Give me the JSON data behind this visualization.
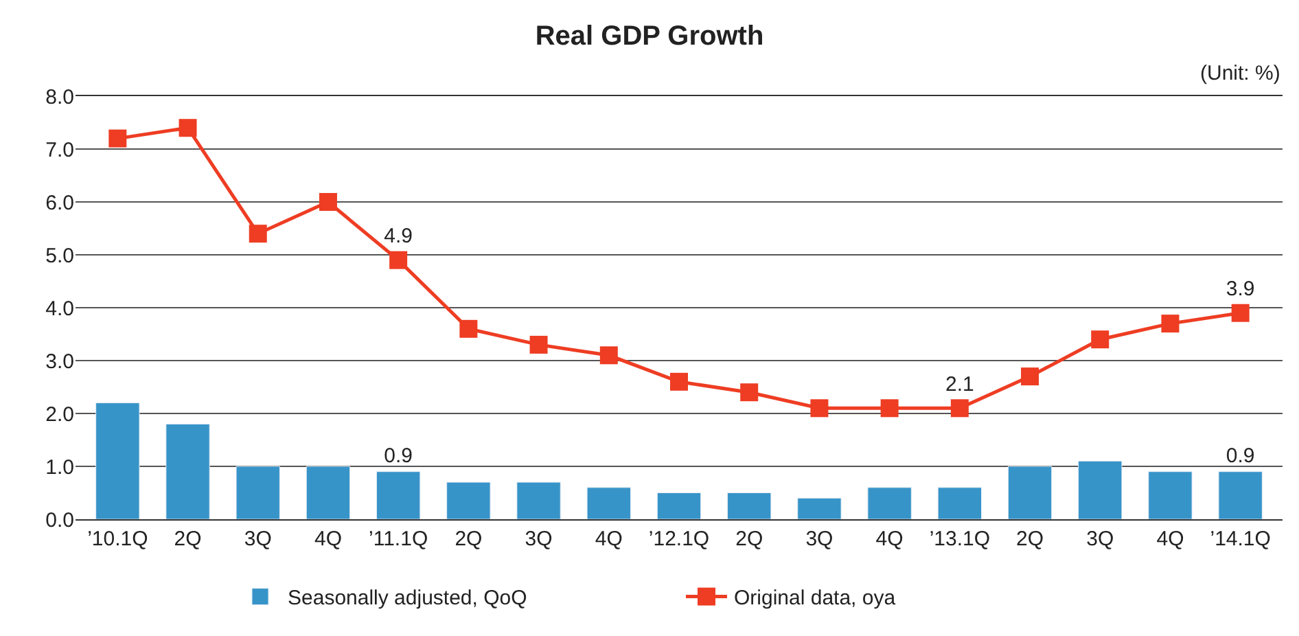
{
  "chart_data": {
    "type": "bar",
    "title": "Real GDP Growth",
    "annotations": [
      "(Unit: %)"
    ],
    "categories": [
      "’10.1Q",
      "2Q",
      "3Q",
      "4Q",
      "’11.1Q",
      "2Q",
      "3Q",
      "4Q",
      "’12.1Q",
      "2Q",
      "3Q",
      "4Q",
      "’13.1Q",
      "2Q",
      "3Q",
      "4Q",
      "’14.1Q"
    ],
    "series": [
      {
        "name": "Seasonally adjusted, QoQ",
        "color": "#3794c8",
        "values": [
          2.2,
          1.8,
          1.0,
          1.0,
          0.9,
          0.7,
          0.7,
          0.6,
          0.5,
          0.5,
          0.4,
          0.6,
          0.6,
          1.0,
          1.1,
          0.9,
          0.9
        ],
        "value_labels": [
          null,
          null,
          null,
          null,
          "0.9",
          null,
          null,
          null,
          null,
          null,
          null,
          null,
          null,
          null,
          null,
          null,
          "0.9"
        ]
      },
      {
        "name": "Original data, oya",
        "type": "line",
        "color": "#ee3d23",
        "marker": "square",
        "values": [
          7.2,
          7.4,
          5.4,
          6.0,
          4.9,
          3.6,
          3.3,
          3.1,
          2.6,
          2.4,
          2.1,
          2.1,
          2.1,
          2.7,
          3.4,
          3.7,
          3.9
        ],
        "value_labels": [
          null,
          null,
          null,
          null,
          "4.9",
          null,
          null,
          null,
          null,
          null,
          null,
          null,
          "2.1",
          null,
          null,
          null,
          "3.9"
        ]
      }
    ],
    "ylim": [
      0,
      8
    ],
    "yticks": [
      {
        "value": 0,
        "label": "0.0"
      },
      {
        "value": 1,
        "label": "1.0"
      },
      {
        "value": 2,
        "label": "2.0"
      },
      {
        "value": 3,
        "label": "3.0"
      },
      {
        "value": 4,
        "label": "4.0"
      },
      {
        "value": 5,
        "label": "5.0"
      },
      {
        "value": 6,
        "label": "6.0"
      },
      {
        "value": 7,
        "label": "7.0"
      },
      {
        "value": 8,
        "label": "8.0"
      }
    ],
    "grid": "y",
    "legend": "bottom"
  }
}
